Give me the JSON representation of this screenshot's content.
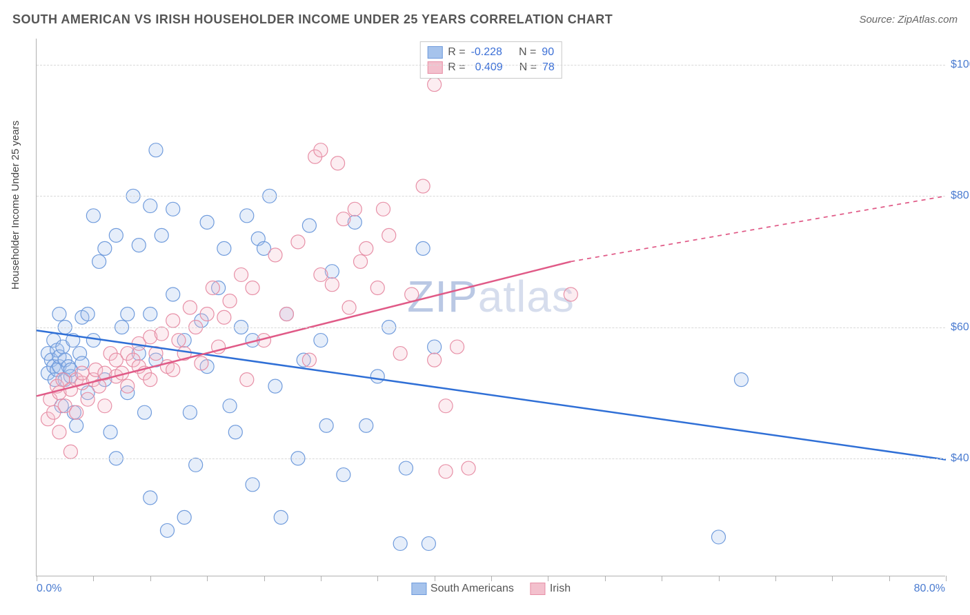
{
  "title": "SOUTH AMERICAN VS IRISH HOUSEHOLDER INCOME UNDER 25 YEARS CORRELATION CHART",
  "source": "Source: ZipAtlas.com",
  "watermark_a": "ZIP",
  "watermark_b": "atlas",
  "chart": {
    "type": "scatter",
    "xlabel": "",
    "ylabel": "Householder Income Under 25 years",
    "xlim": [
      0,
      80
    ],
    "ylim": [
      22000,
      104000
    ],
    "x_tick_positions": [
      0,
      5,
      10,
      15,
      20,
      25,
      30,
      35,
      40,
      45,
      50,
      55,
      60,
      65,
      70,
      75,
      80
    ],
    "x_tick_labels": {
      "0": "0.0%",
      "80": "80.0%"
    },
    "y_gridlines": [
      40000,
      60000,
      80000,
      100000
    ],
    "y_tick_labels": {
      "40000": "$40,000",
      "60000": "$60,000",
      "80000": "$80,000",
      "100000": "$100,000"
    },
    "background_color": "#ffffff",
    "grid_color": "#d8d8d8",
    "axis_color": "#b0b0b0",
    "tick_label_color": "#4a7bd0",
    "label_fontsize": 15,
    "marker_radius": 10,
    "marker_stroke_width": 1.2,
    "marker_fill_opacity": 0.28,
    "trend_line_width": 2.5,
    "series": [
      {
        "name": "South Americans",
        "R": -0.228,
        "N": 90,
        "color_fill": "#a6c3ec",
        "color_stroke": "#6f9bdc",
        "trend_color": "#2f6fd6",
        "trend": {
          "x1": 0,
          "y1": 59500,
          "x2": 80,
          "y2": 39800
        },
        "points": [
          [
            1,
            53000
          ],
          [
            1,
            56000
          ],
          [
            1.3,
            55000
          ],
          [
            1.5,
            58000
          ],
          [
            1.5,
            54000
          ],
          [
            1.6,
            52000
          ],
          [
            1.8,
            53500
          ],
          [
            1.8,
            56500
          ],
          [
            2,
            54000
          ],
          [
            2,
            55500
          ],
          [
            2,
            62000
          ],
          [
            2.2,
            48000
          ],
          [
            2.3,
            57000
          ],
          [
            2.5,
            55000
          ],
          [
            2.5,
            52000
          ],
          [
            2.5,
            60000
          ],
          [
            2.8,
            54000
          ],
          [
            3,
            52500
          ],
          [
            3,
            53500
          ],
          [
            3.2,
            58000
          ],
          [
            3.3,
            47000
          ],
          [
            3.5,
            45000
          ],
          [
            3.8,
            56000
          ],
          [
            4,
            61500
          ],
          [
            4,
            54500
          ],
          [
            4.5,
            62000
          ],
          [
            4.5,
            50000
          ],
          [
            5,
            58000
          ],
          [
            5,
            77000
          ],
          [
            5.5,
            70000
          ],
          [
            6,
            52000
          ],
          [
            6,
            72000
          ],
          [
            6.5,
            44000
          ],
          [
            7,
            40000
          ],
          [
            7,
            74000
          ],
          [
            7.5,
            60000
          ],
          [
            8,
            62000
          ],
          [
            8,
            50000
          ],
          [
            8.5,
            80000
          ],
          [
            9,
            56000
          ],
          [
            9,
            72500
          ],
          [
            9.5,
            47000
          ],
          [
            10,
            62000
          ],
          [
            10,
            34000
          ],
          [
            10,
            78500
          ],
          [
            10.5,
            55000
          ],
          [
            10.5,
            87000
          ],
          [
            11,
            74000
          ],
          [
            11.5,
            29000
          ],
          [
            12,
            65000
          ],
          [
            12,
            78000
          ],
          [
            13,
            58000
          ],
          [
            13,
            31000
          ],
          [
            13.5,
            47000
          ],
          [
            14,
            39000
          ],
          [
            14.5,
            61000
          ],
          [
            15,
            54000
          ],
          [
            15,
            76000
          ],
          [
            16,
            66000
          ],
          [
            16.5,
            72000
          ],
          [
            17,
            48000
          ],
          [
            17.5,
            44000
          ],
          [
            18,
            60000
          ],
          [
            18.5,
            77000
          ],
          [
            19,
            36000
          ],
          [
            19,
            58000
          ],
          [
            19.5,
            73500
          ],
          [
            20,
            72000
          ],
          [
            20.5,
            80000
          ],
          [
            21,
            51000
          ],
          [
            21.5,
            31000
          ],
          [
            22,
            62000
          ],
          [
            23,
            40000
          ],
          [
            23.5,
            55000
          ],
          [
            24,
            75500
          ],
          [
            25,
            58000
          ],
          [
            25.5,
            45000
          ],
          [
            26,
            68500
          ],
          [
            27,
            37500
          ],
          [
            28,
            76000
          ],
          [
            29,
            45000
          ],
          [
            30,
            52500
          ],
          [
            31,
            60000
          ],
          [
            32,
            27000
          ],
          [
            32.5,
            38500
          ],
          [
            34,
            72000
          ],
          [
            34.5,
            27000
          ],
          [
            35,
            57000
          ],
          [
            62,
            52000
          ],
          [
            60,
            28000
          ]
        ]
      },
      {
        "name": "Irish",
        "R": 0.409,
        "N": 78,
        "color_fill": "#f3c0cd",
        "color_stroke": "#e78fa6",
        "trend_color": "#e05a87",
        "trend": {
          "x1": 0,
          "y1": 49500,
          "x2": 47,
          "y2": 70000
        },
        "trend_dashed": {
          "x1": 47,
          "y1": 70000,
          "x2": 80,
          "y2": 80000
        },
        "points": [
          [
            1,
            46000
          ],
          [
            1.2,
            49000
          ],
          [
            1.5,
            47000
          ],
          [
            1.8,
            51000
          ],
          [
            2,
            44000
          ],
          [
            2,
            50000
          ],
          [
            2.3,
            52000
          ],
          [
            2.5,
            48000
          ],
          [
            3,
            50500
          ],
          [
            3,
            41000
          ],
          [
            3.5,
            52000
          ],
          [
            3.5,
            47000
          ],
          [
            4,
            51500
          ],
          [
            4,
            53000
          ],
          [
            4.5,
            49000
          ],
          [
            5,
            52000
          ],
          [
            5.2,
            53500
          ],
          [
            5.5,
            51000
          ],
          [
            6,
            53000
          ],
          [
            6,
            48000
          ],
          [
            6.5,
            56000
          ],
          [
            7,
            52500
          ],
          [
            7,
            55000
          ],
          [
            7.5,
            53000
          ],
          [
            8,
            56000
          ],
          [
            8,
            51000
          ],
          [
            8.5,
            55000
          ],
          [
            9,
            57500
          ],
          [
            9,
            54000
          ],
          [
            9.5,
            53000
          ],
          [
            10,
            58500
          ],
          [
            10,
            52000
          ],
          [
            10.5,
            56000
          ],
          [
            11,
            59000
          ],
          [
            11.5,
            54000
          ],
          [
            12,
            61000
          ],
          [
            12,
            53500
          ],
          [
            12.5,
            58000
          ],
          [
            13,
            56000
          ],
          [
            13.5,
            63000
          ],
          [
            14,
            60000
          ],
          [
            14.5,
            54500
          ],
          [
            15,
            62000
          ],
          [
            15.5,
            66000
          ],
          [
            16,
            57000
          ],
          [
            16.5,
            61500
          ],
          [
            17,
            64000
          ],
          [
            18,
            68000
          ],
          [
            18.5,
            52000
          ],
          [
            19,
            66000
          ],
          [
            20,
            58000
          ],
          [
            21,
            71000
          ],
          [
            22,
            62000
          ],
          [
            23,
            73000
          ],
          [
            24,
            55000
          ],
          [
            24.5,
            86000
          ],
          [
            25,
            68000
          ],
          [
            25,
            87000
          ],
          [
            26,
            66500
          ],
          [
            26.5,
            85000
          ],
          [
            27,
            76500
          ],
          [
            27.5,
            63000
          ],
          [
            28,
            78000
          ],
          [
            28.5,
            70000
          ],
          [
            29,
            72000
          ],
          [
            30,
            66000
          ],
          [
            30.5,
            78000
          ],
          [
            31,
            74000
          ],
          [
            32,
            56000
          ],
          [
            33,
            65000
          ],
          [
            34,
            81500
          ],
          [
            35,
            55000
          ],
          [
            35,
            97000
          ],
          [
            36,
            48000
          ],
          [
            36,
            38000
          ],
          [
            37,
            57000
          ],
          [
            38,
            38500
          ],
          [
            47,
            65000
          ]
        ]
      }
    ]
  },
  "legend_top": {
    "r_label": "R =",
    "n_label": "N ="
  },
  "legend_bottom": {
    "series1": "South Americans",
    "series2": "Irish"
  }
}
